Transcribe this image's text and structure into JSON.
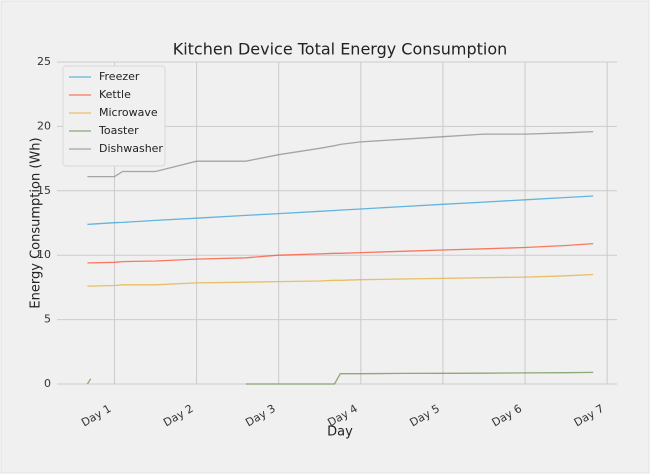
{
  "chart_data": {
    "type": "line",
    "title": "Kitchen Device Total Energy Consumption",
    "x_label": "Day",
    "y_label": "Energy Consumption (Wh)",
    "x": [
      0.67,
      0.71,
      1.0,
      1.1,
      1.5,
      2.0,
      2.6,
      3.0,
      3.5,
      3.68,
      3.75,
      4.0,
      4.5,
      5.0,
      5.5,
      6.0,
      6.5,
      6.83
    ],
    "series": [
      {
        "name": "Freezer",
        "color": "#30a2da",
        "values": [
          12.4,
          12.41,
          12.52,
          12.55,
          12.7,
          12.87,
          13.09,
          13.23,
          13.41,
          13.47,
          13.5,
          13.59,
          13.77,
          13.95,
          14.12,
          14.3,
          14.48,
          14.6
        ]
      },
      {
        "name": "Kettle",
        "color": "#fc4f30",
        "values": [
          9.4,
          9.4,
          9.45,
          9.5,
          9.55,
          9.7,
          9.8,
          10.0,
          10.1,
          10.15,
          10.15,
          10.2,
          10.3,
          10.4,
          10.5,
          10.6,
          10.75,
          10.9
        ]
      },
      {
        "name": "Microwave",
        "color": "#e5ae38",
        "values": [
          7.6,
          7.6,
          7.65,
          7.7,
          7.7,
          7.85,
          7.9,
          7.95,
          8.0,
          8.05,
          8.05,
          8.1,
          8.15,
          8.2,
          8.25,
          8.3,
          8.4,
          8.5
        ]
      },
      {
        "name": "Toaster",
        "color": "#6d904f",
        "values": [
          0,
          0.4,
          null,
          null,
          null,
          null,
          0,
          0,
          0,
          0,
          0.8,
          0.8,
          0.82,
          0.83,
          0.84,
          0.86,
          0.88,
          0.9
        ]
      },
      {
        "name": "Dishwasher",
        "color": "#8b8b8b",
        "values": [
          16.1,
          16.1,
          16.1,
          16.5,
          16.5,
          17.3,
          17.3,
          17.8,
          18.3,
          18.5,
          18.6,
          18.8,
          19.0,
          19.2,
          19.4,
          19.4,
          19.5,
          19.6
        ]
      }
    ],
    "xlim": [
      0.3,
      7.12
    ],
    "xticks": [
      {
        "value": 1,
        "label": "Day 1"
      },
      {
        "value": 2,
        "label": "Day 2"
      },
      {
        "value": 3,
        "label": "Day 3"
      },
      {
        "value": 4,
        "label": "Day 4"
      },
      {
        "value": 5,
        "label": "Day 5"
      },
      {
        "value": 6,
        "label": "Day 6"
      },
      {
        "value": 7,
        "label": "Day 7"
      }
    ],
    "ylim": [
      0,
      25
    ],
    "yticks": [
      0,
      5,
      10,
      15,
      20,
      25
    ],
    "grid": true,
    "legend": "upper left"
  }
}
